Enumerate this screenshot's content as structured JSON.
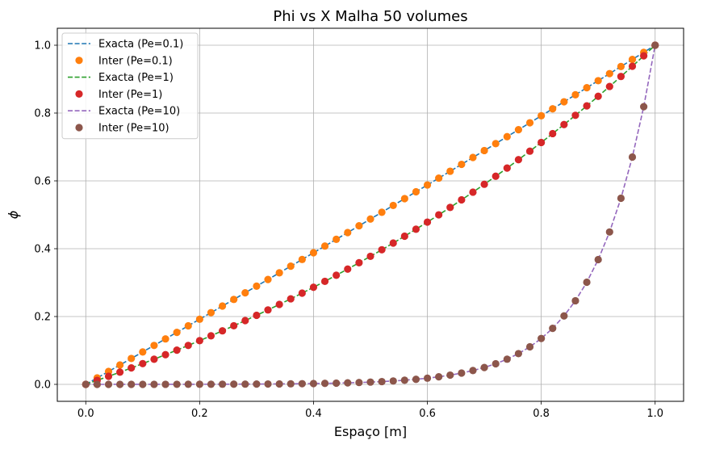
{
  "chart_data": {
    "type": "line",
    "title": "Phi vs X Malha 50 volumes",
    "xlabel": "Espaço [m]",
    "ylabel": "ϕ",
    "xlim": [
      -0.05,
      1.05
    ],
    "ylim": [
      -0.05,
      1.05
    ],
    "xticks": [
      0.0,
      0.2,
      0.4,
      0.6,
      0.8,
      1.0
    ],
    "xtick_labels": [
      "0.0",
      "0.2",
      "0.4",
      "0.6",
      "0.8",
      "1.0"
    ],
    "yticks": [
      0.0,
      0.2,
      0.4,
      0.6,
      0.8,
      1.0
    ],
    "ytick_labels": [
      "0.0",
      "0.2",
      "0.4",
      "0.6",
      "0.8",
      "1.0"
    ],
    "grid": true,
    "legend_position": "top-left",
    "series": [
      {
        "name": "Exacta (Pe=0.1)",
        "style": "dashed-line",
        "color": "#1f77b4",
        "pe": 0.1,
        "points": 51
      },
      {
        "name": "Inter (Pe=0.1)",
        "style": "markers",
        "color": "#ff7f0e",
        "pe": 0.1,
        "points": 51
      },
      {
        "name": "Exacta (Pe=1)",
        "style": "dashed-line",
        "color": "#2ca02c",
        "pe": 1,
        "points": 51
      },
      {
        "name": "Inter (Pe=1)",
        "style": "markers",
        "color": "#d62728",
        "pe": 1,
        "points": 51
      },
      {
        "name": "Exacta (Pe=10)",
        "style": "dashed-line",
        "color": "#9467bd",
        "pe": 10,
        "points": 51
      },
      {
        "name": "Inter (Pe=10)",
        "style": "markers",
        "color": "#8c564b",
        "pe": 10,
        "points": 51
      }
    ]
  }
}
